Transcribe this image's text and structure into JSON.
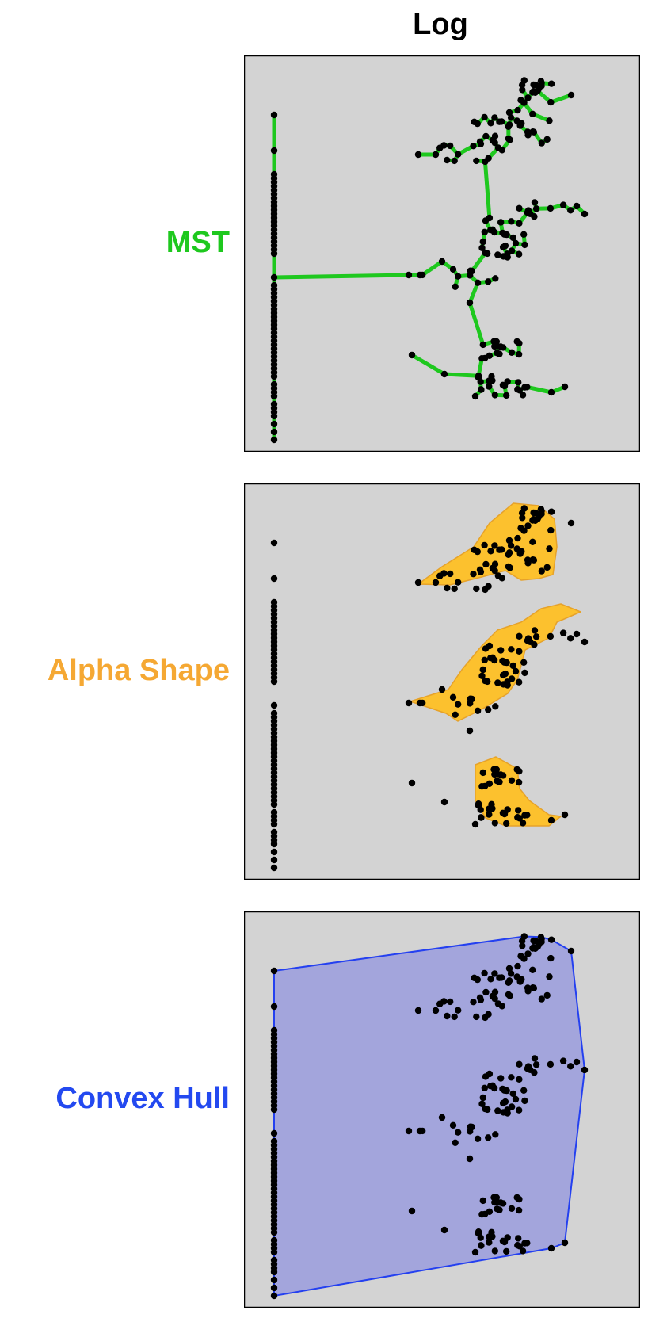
{
  "title": "Log",
  "colors": {
    "panel_bg": "#d3d3d3",
    "points": "#000000",
    "mst": "#1ec81e",
    "alpha": "#fcc12e",
    "alpha_label": "#f5a833",
    "hull_fill": "#a3a5dc",
    "hull_stroke": "#2440f0",
    "convex_label": "#2349f0"
  },
  "panels": [
    {
      "label": "MST",
      "method": "mst"
    },
    {
      "label": "Alpha Shape",
      "method": "alpha"
    },
    {
      "label": "Convex Hull",
      "method": "hull"
    }
  ]
}
